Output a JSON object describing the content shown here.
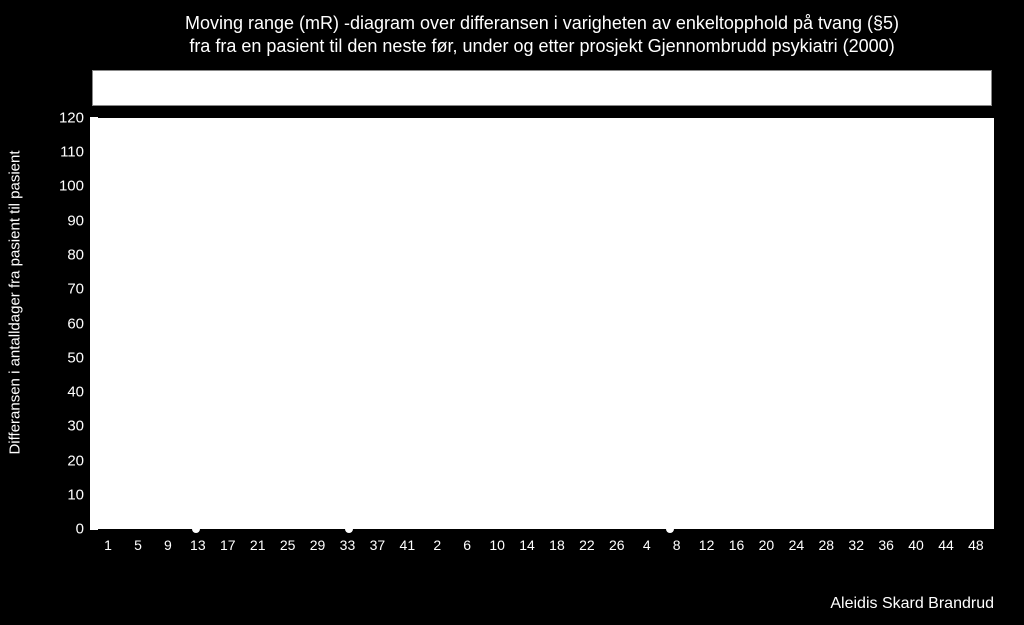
{
  "title_line1": "Moving range (mR) -diagram over differansen i varigheten av enkeltopphold på tvang (§5)",
  "title_line2": "fra  fra en pasient til den neste før, under og etter prosjekt Gjennombrudd psykiatri (2000)",
  "ylabel": "Differansen i antalldager fra pasient til pasient",
  "credit": "Aleidis Skard Brandrud",
  "colors": {
    "background": "#000000",
    "text": "#ffffff",
    "plot_bg": "#ffffff",
    "marker": "#ffffff"
  },
  "fonts": {
    "title_size": 18,
    "axis_size": 15,
    "ylabel_size": 15
  },
  "chart": {
    "type": "line",
    "ymin": 0,
    "ymax": 120,
    "ytick_step": 10,
    "yticks": [
      0,
      10,
      20,
      30,
      40,
      50,
      60,
      70,
      80,
      90,
      100,
      110,
      120
    ],
    "segments": [
      {
        "start": 1,
        "end": 42,
        "step": 4,
        "first_label": 1
      },
      {
        "start": 2,
        "end": 27,
        "step": 4,
        "first_label": 2
      },
      {
        "start": 4,
        "end": 49,
        "step": 4,
        "first_label": 4
      }
    ],
    "x_labels": [
      "1",
      "5",
      "9",
      "13",
      "17",
      "21",
      "25",
      "29",
      "33",
      "37",
      "41",
      "2",
      "6",
      "10",
      "14",
      "18",
      "22",
      "26",
      "4",
      "8",
      "12",
      "16",
      "20",
      "24",
      "28",
      "32",
      "36",
      "40",
      "44",
      "48"
    ],
    "total_x_span": 120,
    "markers_at_zero_x_index": [
      12,
      33,
      77
    ],
    "marker_y": 0
  }
}
